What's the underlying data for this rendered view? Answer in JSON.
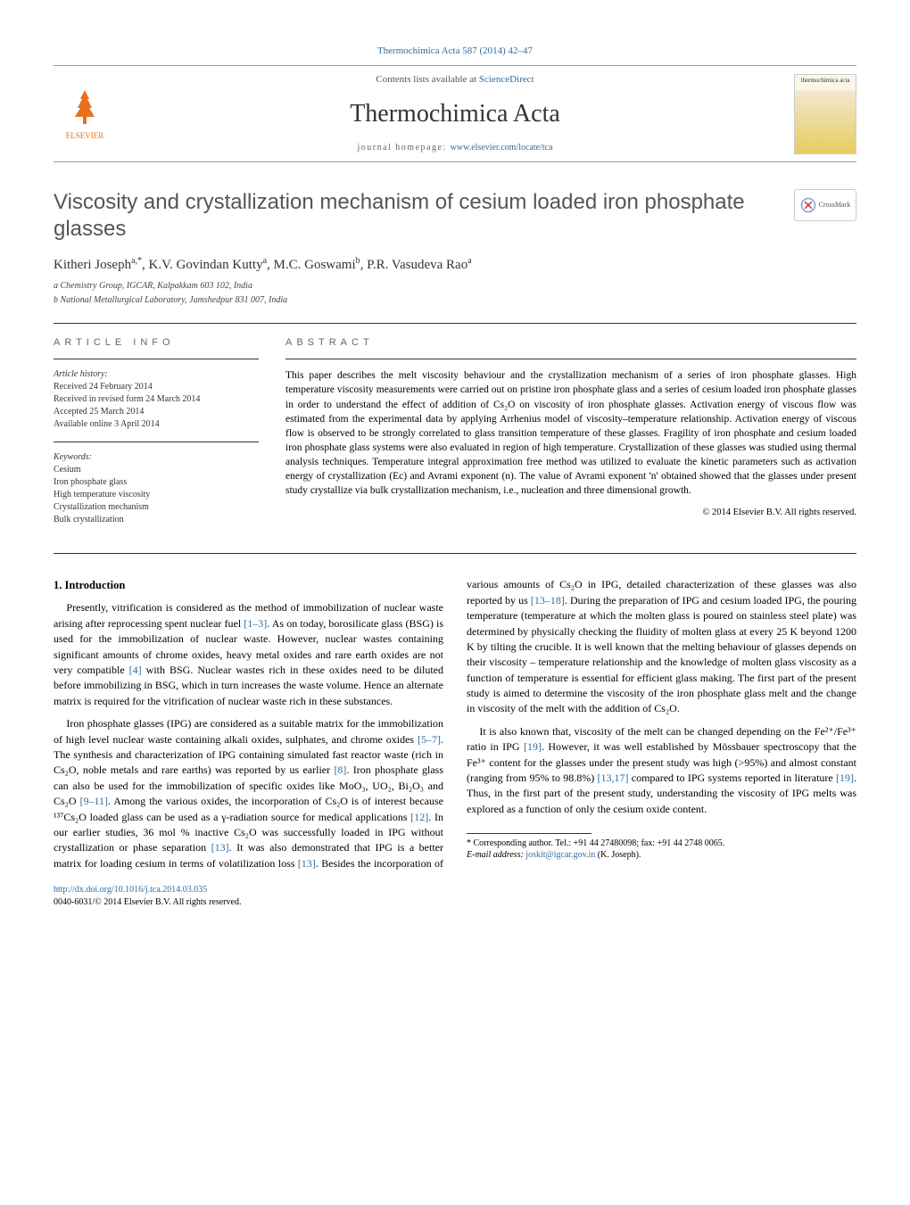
{
  "page_header_citation": "Thermochimica Acta 587 (2014) 42–47",
  "masthead": {
    "contents_prefix": "Contents lists available at ",
    "contents_link": "ScienceDirect",
    "journal": "Thermochimica Acta",
    "homepage_prefix": "journal homepage: ",
    "homepage_url": "www.elsevier.com/locate/tca",
    "publisher_name": "ELSEVIER",
    "cover_label": "thermochimica acta"
  },
  "crossmark_label": "CrossMark",
  "title": "Viscosity and crystallization mechanism of cesium loaded iron phosphate glasses",
  "authors_html": "Kitheri Joseph<sup>a,*</sup>, K.V. Govindan Kutty<sup>a</sup>, M.C. Goswami<sup>b</sup>, P.R. Vasudeva Rao<sup>a</sup>",
  "affiliations": [
    "a Chemistry Group, IGCAR, Kalpakkam 603 102, India",
    "b National Metallurgical Laboratory, Jamshedpur 831 007, India"
  ],
  "article_info": {
    "heading": "ARTICLE INFO",
    "history_label": "Article history:",
    "history": [
      "Received 24 February 2014",
      "Received in revised form 24 March 2014",
      "Accepted 25 March 2014",
      "Available online 3 April 2014"
    ],
    "keywords_label": "Keywords:",
    "keywords": [
      "Cesium",
      "Iron phosphate glass",
      "High temperature viscosity",
      "Crystallization mechanism",
      "Bulk crystallization"
    ]
  },
  "abstract": {
    "heading": "ABSTRACT",
    "text": "This paper describes the melt viscosity behaviour and the crystallization mechanism of a series of iron phosphate glasses. High temperature viscosity measurements were carried out on pristine iron phosphate glass and a series of cesium loaded iron phosphate glasses in order to understand the effect of addition of Cs₂O on viscosity of iron phosphate glasses. Activation energy of viscous flow was estimated from the experimental data by applying Arrhenius model of viscosity–temperature relationship. Activation energy of viscous flow is observed to be strongly correlated to glass transition temperature of these glasses. Fragility of iron phosphate and cesium loaded iron phosphate glass systems were also evaluated in region of high temperature. Crystallization of these glasses was studied using thermal analysis techniques. Temperature integral approximation free method was utilized to evaluate the kinetic parameters such as activation energy of crystallization (Ec) and Avrami exponent (n). The value of Avrami exponent 'n' obtained showed that the glasses under present study crystallize via bulk crystallization mechanism, i.e., nucleation and three dimensional growth.",
    "copyright": "© 2014 Elsevier B.V. All rights reserved."
  },
  "body": {
    "section_number": "1.",
    "section_title": "Introduction",
    "p1a": "Presently, vitrification is considered as the method of immobilization of nuclear waste arising after reprocessing spent nuclear fuel ",
    "p1_ref1": "[1–3]",
    "p1b": ". As on today, borosilicate glass (BSG) is used for the immobilization of nuclear waste. However, nuclear wastes containing significant amounts of chrome oxides, heavy metal oxides and rare earth oxides are not very compatible ",
    "p1_ref2": "[4]",
    "p1c": " with BSG. Nuclear wastes rich in these oxides need to be diluted before immobilizing in BSG, which in turn increases the waste volume. Hence an alternate matrix is required for the vitrification of nuclear waste rich in these substances.",
    "p2a": "Iron phosphate glasses (IPG) are considered as a suitable matrix for the immobilization of high level nuclear waste containing alkali oxides, sulphates, and chrome oxides ",
    "p2_ref1": "[5–7]",
    "p2b": ". The synthesis and characterization of IPG containing simulated fast reactor waste (rich in Cs₂O, noble metals and rare earths) was reported by us earlier ",
    "p2_ref2": "[8]",
    "p2c": ". Iron phosphate glass can also be used for the immobilization of specific oxides like MoO₃, UO₂, Bi₂O₃ and Cs₂O ",
    "p2_ref3": "[9–11]",
    "p2d": ". Among the various oxides, the incorporation of Cs₂O is of interest because ¹³⁷Cs₂O loaded glass can be used as a γ-radiation source for medical ",
    "p3a": "applications ",
    "p3_ref1": "[12]",
    "p3b": ". In our earlier studies, 36 mol % inactive Cs₂O was successfully loaded in IPG without crystallization or phase separation ",
    "p3_ref2": "[13]",
    "p3c": ". It was also demonstrated that IPG is a better matrix for loading cesium in terms of volatilization loss ",
    "p3_ref3": "[13]",
    "p3d": ". Besides the incorporation of various amounts of Cs₂O in IPG, detailed characterization of these glasses was also reported by us ",
    "p3_ref4": "[13–18]",
    "p3e": ". During the preparation of IPG and cesium loaded IPG, the pouring temperature (temperature at which the molten glass is poured on stainless steel plate) was determined by physically checking the fluidity of molten glass at every 25 K beyond 1200 K by tilting the crucible. It is well known that the melting behaviour of glasses depends on their viscosity – temperature relationship and the knowledge of molten glass viscosity as a function of temperature is essential for efficient glass making. The first part of the present study is aimed to determine the viscosity of the iron phosphate glass melt and the change in viscosity of the melt with the addition of Cs₂O.",
    "p4a": "It is also known that, viscosity of the melt can be changed depending on the Fe²⁺/Fe³⁺ ratio in IPG ",
    "p4_ref1": "[19]",
    "p4b": ". However, it was well established by Mössbauer spectroscopy that the Fe³⁺ content for the glasses under the present study was high (>95%) and almost constant (ranging from 95% to 98.8%) ",
    "p4_ref2": "[13,17]",
    "p4c": " compared to IPG systems reported in literature ",
    "p4_ref3": "[19]",
    "p4d": ". Thus, in the first part of the present study, understanding the viscosity of IPG melts was explored as a function of only the cesium oxide content."
  },
  "footnote": {
    "corr": "* Corresponding author. Tel.: +91 44 27480098; fax: +91 44 2748 0065.",
    "email_label": "E-mail address: ",
    "email": "joskit@igcar.gov.in",
    "email_who": " (K. Joseph)."
  },
  "doi": {
    "url": "http://dx.doi.org/10.1016/j.tca.2014.03.035",
    "issn_line": "0040-6031/© 2014 Elsevier B.V. All rights reserved."
  },
  "colors": {
    "link": "#2e6da4",
    "text": "#000000",
    "muted": "#666666",
    "elsevier": "#e9711c"
  }
}
